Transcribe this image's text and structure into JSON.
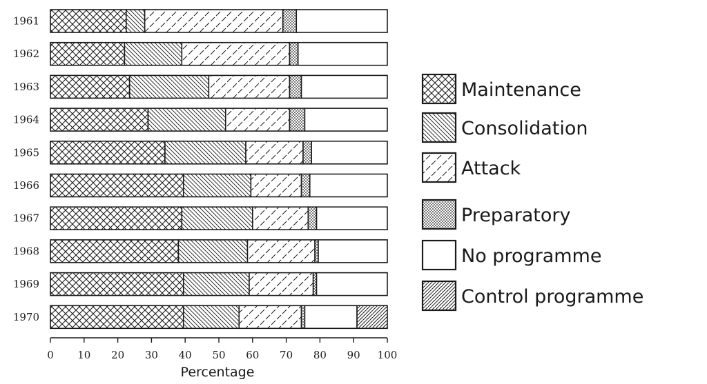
{
  "chart_data": {
    "type": "bar",
    "orientation": "horizontal",
    "stacked": true,
    "xlabel": "Percentage",
    "ylabel": "",
    "xlim": [
      0,
      100
    ],
    "xticks": [
      0,
      10,
      20,
      30,
      40,
      50,
      60,
      70,
      80,
      90,
      100
    ],
    "grid": false,
    "legend_position": "right",
    "categories": [
      "1961",
      "1962",
      "1963",
      "1964",
      "1965",
      "1966",
      "1967",
      "1968",
      "1969",
      "1970"
    ],
    "series": [
      {
        "name": "Maintenance",
        "pattern": "crosshatch",
        "values": [
          22.5,
          22,
          23.5,
          29,
          34,
          39.5,
          39,
          38,
          39.5,
          39.5
        ]
      },
      {
        "name": "Consolidation",
        "pattern": "diagonal-dense",
        "values": [
          5.5,
          17,
          23.5,
          23,
          24,
          20,
          21,
          20.5,
          19.5,
          16.5
        ]
      },
      {
        "name": "Attack",
        "pattern": "diagonal-dashed",
        "values": [
          41,
          32,
          24,
          19,
          17,
          15,
          16.5,
          20,
          19,
          18.5
        ]
      },
      {
        "name": "Preparatory",
        "pattern": "dots",
        "values": [
          4,
          2.5,
          3.5,
          4.5,
          2.5,
          2.5,
          2.5,
          1,
          1,
          1
        ]
      },
      {
        "name": "No programme",
        "pattern": "blank",
        "values": [
          27,
          26.5,
          25.5,
          24.5,
          22.5,
          23,
          21,
          20.5,
          21,
          15.5
        ]
      },
      {
        "name": "Control programme",
        "pattern": "diagonal-solid",
        "values": [
          0,
          0,
          0,
          0,
          0,
          0,
          0,
          0,
          0,
          9
        ]
      }
    ]
  }
}
